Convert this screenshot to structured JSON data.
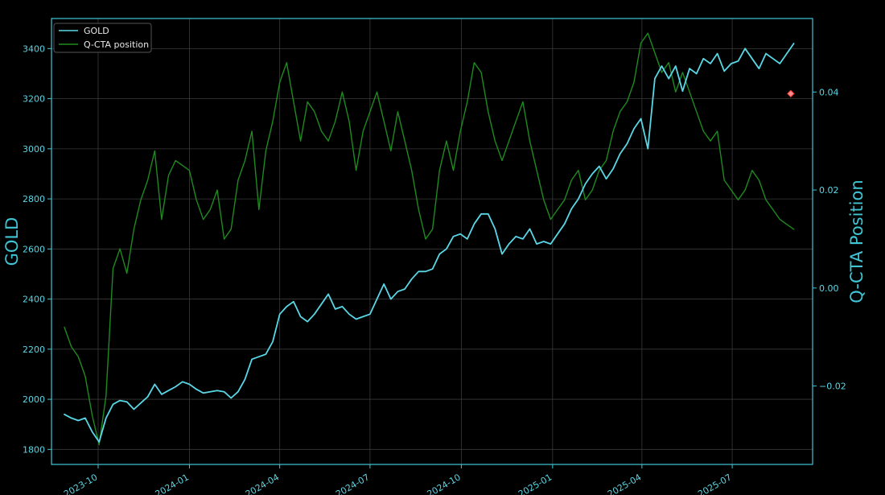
{
  "chart_data": {
    "type": "line",
    "ylabel_left": "GOLD",
    "ylabel_right": "Q-CTA Position",
    "legend_position": "top-left",
    "grid": true,
    "x_tick_labels": [
      "2023-10",
      "2024-01",
      "2024-04",
      "2024-07",
      "2024-10",
      "2025-01",
      "2025-04",
      "2025-07"
    ],
    "y_left_ticks": [
      1800,
      2000,
      2200,
      2400,
      2600,
      2800,
      3000,
      3200,
      3400
    ],
    "y_right_ticks": [
      -0.02,
      0.0,
      0.02,
      0.04
    ],
    "y_right_tick_labels": [
      "−0.02",
      "0.00",
      "0.02",
      "0.04"
    ],
    "x_range": [
      "2023-08-15",
      "2025-09-20"
    ],
    "ylim_left": [
      1740,
      3520
    ],
    "ylim_right": [
      -0.036,
      0.055
    ],
    "colors": {
      "background": "#000000",
      "gold_line": "#5ad7e6",
      "position_line": "#1f8a1f",
      "axes": "#3fc6d6",
      "grid": "#3a3a3a",
      "marker_fill": "#ff8c8c",
      "marker_edge": "#ff3b3b"
    },
    "series": [
      {
        "name": "GOLD",
        "axis": "left",
        "x": [
          "2023-08-28",
          "2023-09-04",
          "2023-09-11",
          "2023-09-18",
          "2023-09-25",
          "2023-10-02",
          "2023-10-09",
          "2023-10-16",
          "2023-10-23",
          "2023-10-30",
          "2023-11-06",
          "2023-11-13",
          "2023-11-20",
          "2023-11-27",
          "2023-12-04",
          "2023-12-11",
          "2023-12-18",
          "2023-12-25",
          "2024-01-01",
          "2024-01-08",
          "2024-01-15",
          "2024-01-22",
          "2024-01-29",
          "2024-02-05",
          "2024-02-12",
          "2024-02-19",
          "2024-02-26",
          "2024-03-04",
          "2024-03-11",
          "2024-03-18",
          "2024-03-25",
          "2024-04-01",
          "2024-04-08",
          "2024-04-15",
          "2024-04-22",
          "2024-04-29",
          "2024-05-06",
          "2024-05-13",
          "2024-05-20",
          "2024-05-27",
          "2024-06-03",
          "2024-06-10",
          "2024-06-17",
          "2024-06-24",
          "2024-07-01",
          "2024-07-08",
          "2024-07-15",
          "2024-07-22",
          "2024-07-29",
          "2024-08-05",
          "2024-08-12",
          "2024-08-19",
          "2024-08-26",
          "2024-09-02",
          "2024-09-09",
          "2024-09-16",
          "2024-09-23",
          "2024-09-30",
          "2024-10-07",
          "2024-10-14",
          "2024-10-21",
          "2024-10-28",
          "2024-11-04",
          "2024-11-11",
          "2024-11-18",
          "2024-11-25",
          "2024-12-02",
          "2024-12-09",
          "2024-12-16",
          "2024-12-23",
          "2024-12-30",
          "2025-01-06",
          "2025-01-13",
          "2025-01-20",
          "2025-01-27",
          "2025-02-03",
          "2025-02-10",
          "2025-02-17",
          "2025-02-24",
          "2025-03-03",
          "2025-03-10",
          "2025-03-17",
          "2025-03-24",
          "2025-03-31",
          "2025-04-07",
          "2025-04-14",
          "2025-04-21",
          "2025-04-28",
          "2025-05-05",
          "2025-05-12",
          "2025-05-19",
          "2025-05-26",
          "2025-06-02",
          "2025-06-09",
          "2025-06-16",
          "2025-06-23",
          "2025-06-30",
          "2025-07-07",
          "2025-07-14",
          "2025-07-21",
          "2025-07-28",
          "2025-08-04",
          "2025-08-11",
          "2025-08-18",
          "2025-08-25",
          "2025-09-01"
        ],
        "values": [
          1940,
          1925,
          1915,
          1925,
          1870,
          1830,
          1925,
          1980,
          1995,
          1990,
          1960,
          1985,
          2010,
          2060,
          2020,
          2035,
          2050,
          2070,
          2060,
          2040,
          2025,
          2030,
          2035,
          2030,
          2005,
          2030,
          2080,
          2160,
          2170,
          2180,
          2230,
          2340,
          2370,
          2390,
          2330,
          2310,
          2340,
          2380,
          2420,
          2360,
          2370,
          2340,
          2320,
          2330,
          2340,
          2400,
          2460,
          2400,
          2430,
          2440,
          2480,
          2510,
          2510,
          2520,
          2580,
          2600,
          2650,
          2660,
          2640,
          2700,
          2740,
          2740,
          2680,
          2580,
          2620,
          2650,
          2640,
          2680,
          2620,
          2630,
          2620,
          2660,
          2700,
          2760,
          2800,
          2860,
          2900,
          2930,
          2880,
          2920,
          2980,
          3020,
          3080,
          3120,
          3000,
          3280,
          3330,
          3280,
          3330,
          3230,
          3320,
          3300,
          3360,
          3340,
          3380,
          3310,
          3340,
          3350,
          3400,
          3360,
          3320,
          3380,
          3360,
          3340,
          3380,
          3420
        ]
      },
      {
        "name": "Q-CTA position",
        "axis": "right",
        "x": [
          "2023-08-28",
          "2023-09-04",
          "2023-09-11",
          "2023-09-18",
          "2023-09-25",
          "2023-10-02",
          "2023-10-09",
          "2023-10-16",
          "2023-10-23",
          "2023-10-30",
          "2023-11-06",
          "2023-11-13",
          "2023-11-20",
          "2023-11-27",
          "2023-12-04",
          "2023-12-11",
          "2023-12-18",
          "2023-12-25",
          "2024-01-01",
          "2024-01-08",
          "2024-01-15",
          "2024-01-22",
          "2024-01-29",
          "2024-02-05",
          "2024-02-12",
          "2024-02-19",
          "2024-02-26",
          "2024-03-04",
          "2024-03-11",
          "2024-03-18",
          "2024-03-25",
          "2024-04-01",
          "2024-04-08",
          "2024-04-15",
          "2024-04-22",
          "2024-04-29",
          "2024-05-06",
          "2024-05-13",
          "2024-05-20",
          "2024-05-27",
          "2024-06-03",
          "2024-06-10",
          "2024-06-17",
          "2024-06-24",
          "2024-07-01",
          "2024-07-08",
          "2024-07-15",
          "2024-07-22",
          "2024-07-29",
          "2024-08-05",
          "2024-08-12",
          "2024-08-19",
          "2024-08-26",
          "2024-09-02",
          "2024-09-09",
          "2024-09-16",
          "2024-09-23",
          "2024-09-30",
          "2024-10-07",
          "2024-10-14",
          "2024-10-21",
          "2024-10-28",
          "2024-11-04",
          "2024-11-11",
          "2024-11-18",
          "2024-11-25",
          "2024-12-02",
          "2024-12-09",
          "2024-12-16",
          "2024-12-23",
          "2024-12-30",
          "2025-01-06",
          "2025-01-13",
          "2025-01-20",
          "2025-01-27",
          "2025-02-03",
          "2025-02-10",
          "2025-02-17",
          "2025-02-24",
          "2025-03-03",
          "2025-03-10",
          "2025-03-17",
          "2025-03-24",
          "2025-03-31",
          "2025-04-07",
          "2025-04-14",
          "2025-04-21",
          "2025-04-28",
          "2025-05-05",
          "2025-05-12",
          "2025-05-19",
          "2025-05-26",
          "2025-06-02",
          "2025-06-09",
          "2025-06-16",
          "2025-06-23",
          "2025-06-30",
          "2025-07-07",
          "2025-07-14",
          "2025-07-21",
          "2025-07-28",
          "2025-08-04",
          "2025-08-11",
          "2025-08-18",
          "2025-08-25",
          "2025-09-01"
        ],
        "values": [
          -0.008,
          -0.012,
          -0.014,
          -0.018,
          -0.026,
          -0.032,
          -0.022,
          0.004,
          0.008,
          0.003,
          0.012,
          0.018,
          0.022,
          0.028,
          0.014,
          0.023,
          0.026,
          0.025,
          0.024,
          0.018,
          0.014,
          0.016,
          0.02,
          0.01,
          0.012,
          0.022,
          0.026,
          0.032,
          0.016,
          0.028,
          0.034,
          0.042,
          0.046,
          0.038,
          0.03,
          0.038,
          0.036,
          0.032,
          0.03,
          0.034,
          0.04,
          0.034,
          0.024,
          0.032,
          0.036,
          0.04,
          0.034,
          0.028,
          0.036,
          0.03,
          0.024,
          0.016,
          0.01,
          0.012,
          0.024,
          0.03,
          0.024,
          0.032,
          0.038,
          0.046,
          0.044,
          0.036,
          0.03,
          0.026,
          0.03,
          0.034,
          0.038,
          0.03,
          0.024,
          0.018,
          0.014,
          0.016,
          0.018,
          0.022,
          0.024,
          0.018,
          0.02,
          0.024,
          0.026,
          0.032,
          0.036,
          0.038,
          0.042,
          0.05,
          0.052,
          0.048,
          0.044,
          0.046,
          0.04,
          0.044,
          0.04,
          0.036,
          0.032,
          0.03,
          0.032,
          0.022,
          0.02,
          0.018,
          0.02,
          0.024,
          0.022,
          0.018,
          0.016,
          0.014,
          0.013,
          0.012
        ]
      }
    ],
    "marker": {
      "x": "2025-08-29",
      "y": 3220,
      "axis": "left",
      "shape": "diamond"
    }
  },
  "legend": {
    "items": [
      {
        "label": "GOLD",
        "color": "#5ad7e6"
      },
      {
        "label": "Q-CTA position",
        "color": "#1f8a1f"
      }
    ]
  }
}
